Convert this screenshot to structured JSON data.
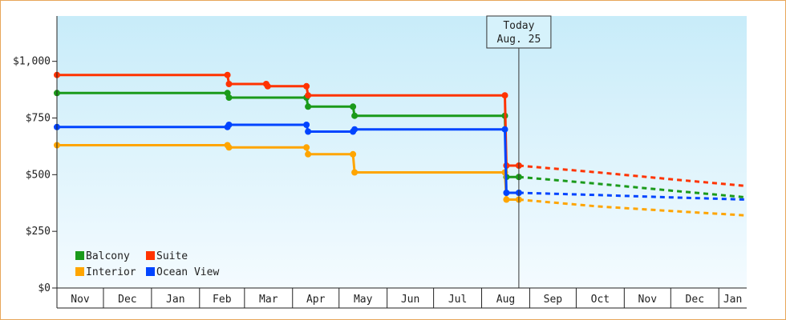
{
  "chart_data": {
    "type": "line",
    "line_shape": "step",
    "title": "",
    "xlabel": "",
    "ylabel": "",
    "x_axis": {
      "type": "date",
      "range": [
        "2019-11-01",
        "2021-01-19"
      ],
      "ticks": [
        {
          "date": "2019-11-01",
          "label": "Nov"
        },
        {
          "date": "2019-12-01",
          "label": "Dec"
        },
        {
          "date": "2020-01-01",
          "label": "Jan"
        },
        {
          "date": "2020-02-01",
          "label": "Feb"
        },
        {
          "date": "2020-03-01",
          "label": "Mar"
        },
        {
          "date": "2020-04-01",
          "label": "Apr"
        },
        {
          "date": "2020-05-01",
          "label": "May"
        },
        {
          "date": "2020-06-01",
          "label": "Jun"
        },
        {
          "date": "2020-07-01",
          "label": "Jul"
        },
        {
          "date": "2020-08-01",
          "label": "Aug"
        },
        {
          "date": "2020-09-01",
          "label": "Sep"
        },
        {
          "date": "2020-10-01",
          "label": "Oct"
        },
        {
          "date": "2020-11-01",
          "label": "Nov"
        },
        {
          "date": "2020-12-01",
          "label": "Dec"
        },
        {
          "date": "2021-01-01",
          "label": "Jan"
        }
      ]
    },
    "ylim": [
      0,
      1200
    ],
    "y_ticks": [
      {
        "value": 0,
        "label": "$0"
      },
      {
        "value": 250,
        "label": "$250"
      },
      {
        "value": 500,
        "label": "$500"
      },
      {
        "value": 750,
        "label": "$750"
      },
      {
        "value": 1000,
        "label": "$1,000"
      }
    ],
    "today": {
      "date": "2020-08-25",
      "label_line1": "Today",
      "label_line2": "Aug. 25"
    },
    "legend_position": "bottom-left",
    "grid": false,
    "series": [
      {
        "name": "Balcony",
        "color": "#1a9a1a",
        "history": [
          {
            "date": "2019-11-01",
            "value": 860
          },
          {
            "date": "2020-02-19",
            "value": 860
          },
          {
            "date": "2020-02-20",
            "value": 840
          },
          {
            "date": "2020-04-10",
            "value": 840
          },
          {
            "date": "2020-04-11",
            "value": 800
          },
          {
            "date": "2020-05-10",
            "value": 800
          },
          {
            "date": "2020-05-11",
            "value": 760
          },
          {
            "date": "2020-08-16",
            "value": 760
          },
          {
            "date": "2020-08-17",
            "value": 490
          },
          {
            "date": "2020-08-25",
            "value": 490
          }
        ],
        "forecast": [
          {
            "date": "2020-08-25",
            "value": 490
          },
          {
            "date": "2020-10-15",
            "value": 460
          },
          {
            "date": "2020-12-01",
            "value": 430
          },
          {
            "date": "2021-01-19",
            "value": 400
          }
        ]
      },
      {
        "name": "Suite",
        "color": "#ff3300",
        "history": [
          {
            "date": "2019-11-01",
            "value": 940
          },
          {
            "date": "2020-02-19",
            "value": 940
          },
          {
            "date": "2020-02-20",
            "value": 900
          },
          {
            "date": "2020-03-15",
            "value": 900
          },
          {
            "date": "2020-03-16",
            "value": 890
          },
          {
            "date": "2020-04-10",
            "value": 890
          },
          {
            "date": "2020-04-11",
            "value": 850
          },
          {
            "date": "2020-08-16",
            "value": 850
          },
          {
            "date": "2020-08-17",
            "value": 540
          },
          {
            "date": "2020-08-25",
            "value": 540
          }
        ],
        "forecast": [
          {
            "date": "2020-08-25",
            "value": 540
          },
          {
            "date": "2020-10-15",
            "value": 510
          },
          {
            "date": "2020-12-01",
            "value": 480
          },
          {
            "date": "2021-01-19",
            "value": 450
          }
        ]
      },
      {
        "name": "Interior",
        "color": "#ffa500",
        "history": [
          {
            "date": "2019-11-01",
            "value": 630
          },
          {
            "date": "2020-02-19",
            "value": 630
          },
          {
            "date": "2020-02-20",
            "value": 620
          },
          {
            "date": "2020-04-10",
            "value": 620
          },
          {
            "date": "2020-04-11",
            "value": 590
          },
          {
            "date": "2020-05-10",
            "value": 590
          },
          {
            "date": "2020-05-11",
            "value": 510
          },
          {
            "date": "2020-08-16",
            "value": 510
          },
          {
            "date": "2020-08-17",
            "value": 390
          },
          {
            "date": "2020-08-25",
            "value": 390
          }
        ],
        "forecast": [
          {
            "date": "2020-08-25",
            "value": 390
          },
          {
            "date": "2020-10-15",
            "value": 360
          },
          {
            "date": "2020-12-01",
            "value": 340
          },
          {
            "date": "2021-01-19",
            "value": 320
          }
        ]
      },
      {
        "name": "Ocean View",
        "color": "#0044ff",
        "history": [
          {
            "date": "2019-11-01",
            "value": 710
          },
          {
            "date": "2020-02-19",
            "value": 710
          },
          {
            "date": "2020-02-20",
            "value": 720
          },
          {
            "date": "2020-04-10",
            "value": 720
          },
          {
            "date": "2020-04-11",
            "value": 690
          },
          {
            "date": "2020-05-10",
            "value": 690
          },
          {
            "date": "2020-05-11",
            "value": 700
          },
          {
            "date": "2020-08-16",
            "value": 700
          },
          {
            "date": "2020-08-17",
            "value": 420
          },
          {
            "date": "2020-08-25",
            "value": 420
          }
        ],
        "forecast": [
          {
            "date": "2020-08-25",
            "value": 420
          },
          {
            "date": "2020-10-15",
            "value": 410
          },
          {
            "date": "2020-12-01",
            "value": 400
          },
          {
            "date": "2021-01-19",
            "value": 390
          }
        ]
      }
    ],
    "colors": {
      "background_top": "#c8ecf9",
      "background_bottom": "#f4fbff",
      "frame_border": "#e8a65a",
      "axis": "#222222"
    }
  }
}
